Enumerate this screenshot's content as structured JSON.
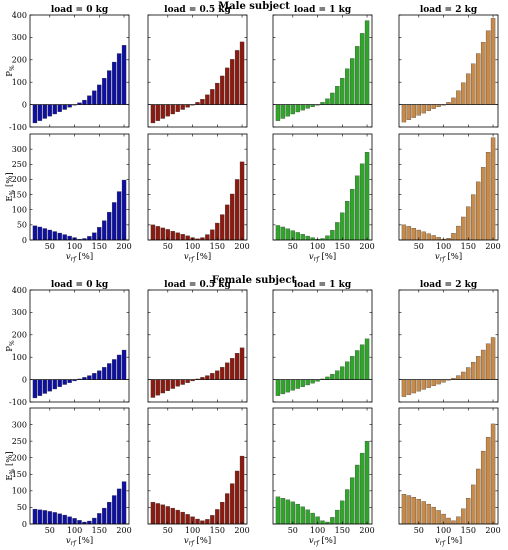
{
  "figure": {
    "sections": [
      {
        "id": "male",
        "title": "Male subject"
      },
      {
        "id": "female",
        "title": "Female subject"
      }
    ],
    "panel_titles": [
      "load = 0 kg",
      "load = 0.5 kg",
      "load = 1 kg",
      "load = 2 kg"
    ],
    "ylabels": {
      "top": "P",
      "top_sub": "%",
      "bottom": "E",
      "bottom_sub": "%",
      "unit": "[%]"
    },
    "xlabel": {
      "main": "v",
      "sub": "rf",
      "unit": "[%]"
    },
    "colors": {
      "blue": "#1010a0",
      "red": "#8b1a10",
      "green": "#2fa52a",
      "orange": "#c88a48"
    }
  },
  "chart_data": {
    "type": "bar",
    "x": [
      20,
      30,
      40,
      50,
      60,
      70,
      80,
      90,
      100,
      110,
      120,
      130,
      140,
      150,
      160,
      170,
      180,
      190,
      200
    ],
    "xticks": [
      50,
      100,
      150,
      200
    ],
    "top_row_yticks": [
      -100,
      0,
      100,
      200,
      300,
      400
    ],
    "top_row_ylim": [
      -100,
      400
    ],
    "bottom_row_yticks": [
      0,
      50,
      100,
      150,
      200,
      250,
      300
    ],
    "bottom_row_ylim": [
      0,
      350
    ],
    "series": [
      {
        "section": "male",
        "load": "0 kg",
        "color": "blue",
        "P": [
          -82,
          -72,
          -62,
          -52,
          -42,
          -32,
          -22,
          -12,
          -3,
          8,
          20,
          40,
          62,
          88,
          118,
          152,
          190,
          228,
          265
        ],
        "E": [
          47,
          43,
          38,
          33,
          28,
          23,
          18,
          13,
          8,
          3,
          5,
          12,
          24,
          42,
          64,
          92,
          124,
          160,
          198
        ]
      },
      {
        "section": "male",
        "load": "0.5 kg",
        "color": "red",
        "P": [
          -82,
          -72,
          -62,
          -52,
          -42,
          -32,
          -22,
          -12,
          -3,
          10,
          24,
          44,
          68,
          96,
          128,
          164,
          202,
          242,
          280
        ],
        "E": [
          50,
          45,
          40,
          35,
          29,
          24,
          19,
          14,
          8,
          4,
          8,
          18,
          34,
          56,
          84,
          116,
          152,
          200,
          258
        ]
      },
      {
        "section": "male",
        "load": "1 kg",
        "color": "green",
        "P": [
          -72,
          -62,
          -52,
          -42,
          -33,
          -25,
          -17,
          -10,
          -3,
          10,
          26,
          52,
          82,
          118,
          160,
          206,
          260,
          318,
          375
        ],
        "E": [
          48,
          43,
          37,
          31,
          25,
          19,
          13,
          8,
          3,
          5,
          14,
          32,
          58,
          90,
          128,
          168,
          212,
          252,
          290
        ]
      },
      {
        "section": "male",
        "load": "2 kg",
        "color": "orange",
        "P": [
          -78,
          -68,
          -58,
          -48,
          -38,
          -28,
          -18,
          -10,
          -3,
          10,
          30,
          62,
          98,
          138,
          182,
          228,
          278,
          330,
          385
        ],
        "E": [
          50,
          45,
          39,
          33,
          27,
          21,
          15,
          9,
          3,
          6,
          22,
          46,
          76,
          110,
          150,
          192,
          240,
          290,
          338
        ]
      },
      {
        "section": "female",
        "load": "0 kg",
        "color": "blue",
        "P": [
          -82,
          -72,
          -62,
          -52,
          -42,
          -32,
          -22,
          -14,
          -6,
          3,
          10,
          18,
          28,
          40,
          55,
          72,
          90,
          110,
          132
        ],
        "E": [
          45,
          43,
          41,
          38,
          35,
          31,
          27,
          22,
          17,
          11,
          6,
          9,
          18,
          32,
          48,
          66,
          86,
          106,
          128
        ]
      },
      {
        "section": "female",
        "load": "0.5 kg",
        "color": "red",
        "P": [
          -80,
          -70,
          -60,
          -50,
          -40,
          -30,
          -22,
          -14,
          -6,
          3,
          10,
          18,
          28,
          40,
          55,
          75,
          95,
          118,
          142
        ],
        "E": [
          66,
          62,
          58,
          53,
          48,
          42,
          36,
          29,
          22,
          15,
          10,
          14,
          26,
          44,
          66,
          92,
          122,
          160,
          205
        ]
      },
      {
        "section": "female",
        "load": "1 kg",
        "color": "green",
        "P": [
          -72,
          -64,
          -56,
          -48,
          -40,
          -32,
          -24,
          -16,
          -8,
          3,
          12,
          24,
          40,
          58,
          80,
          104,
          130,
          156,
          182
        ],
        "E": [
          82,
          78,
          73,
          67,
          60,
          52,
          43,
          33,
          22,
          10,
          6,
          20,
          42,
          70,
          104,
          140,
          178,
          214,
          250
        ]
      },
      {
        "section": "female",
        "load": "2 kg",
        "color": "orange",
        "P": [
          -76,
          -68,
          -60,
          -52,
          -44,
          -36,
          -28,
          -20,
          -12,
          -3,
          6,
          18,
          34,
          54,
          78,
          104,
          132,
          160,
          188
        ],
        "E": [
          90,
          86,
          81,
          75,
          68,
          60,
          51,
          41,
          30,
          18,
          10,
          22,
          46,
          78,
          118,
          166,
          220,
          262,
          302
        ]
      }
    ]
  }
}
